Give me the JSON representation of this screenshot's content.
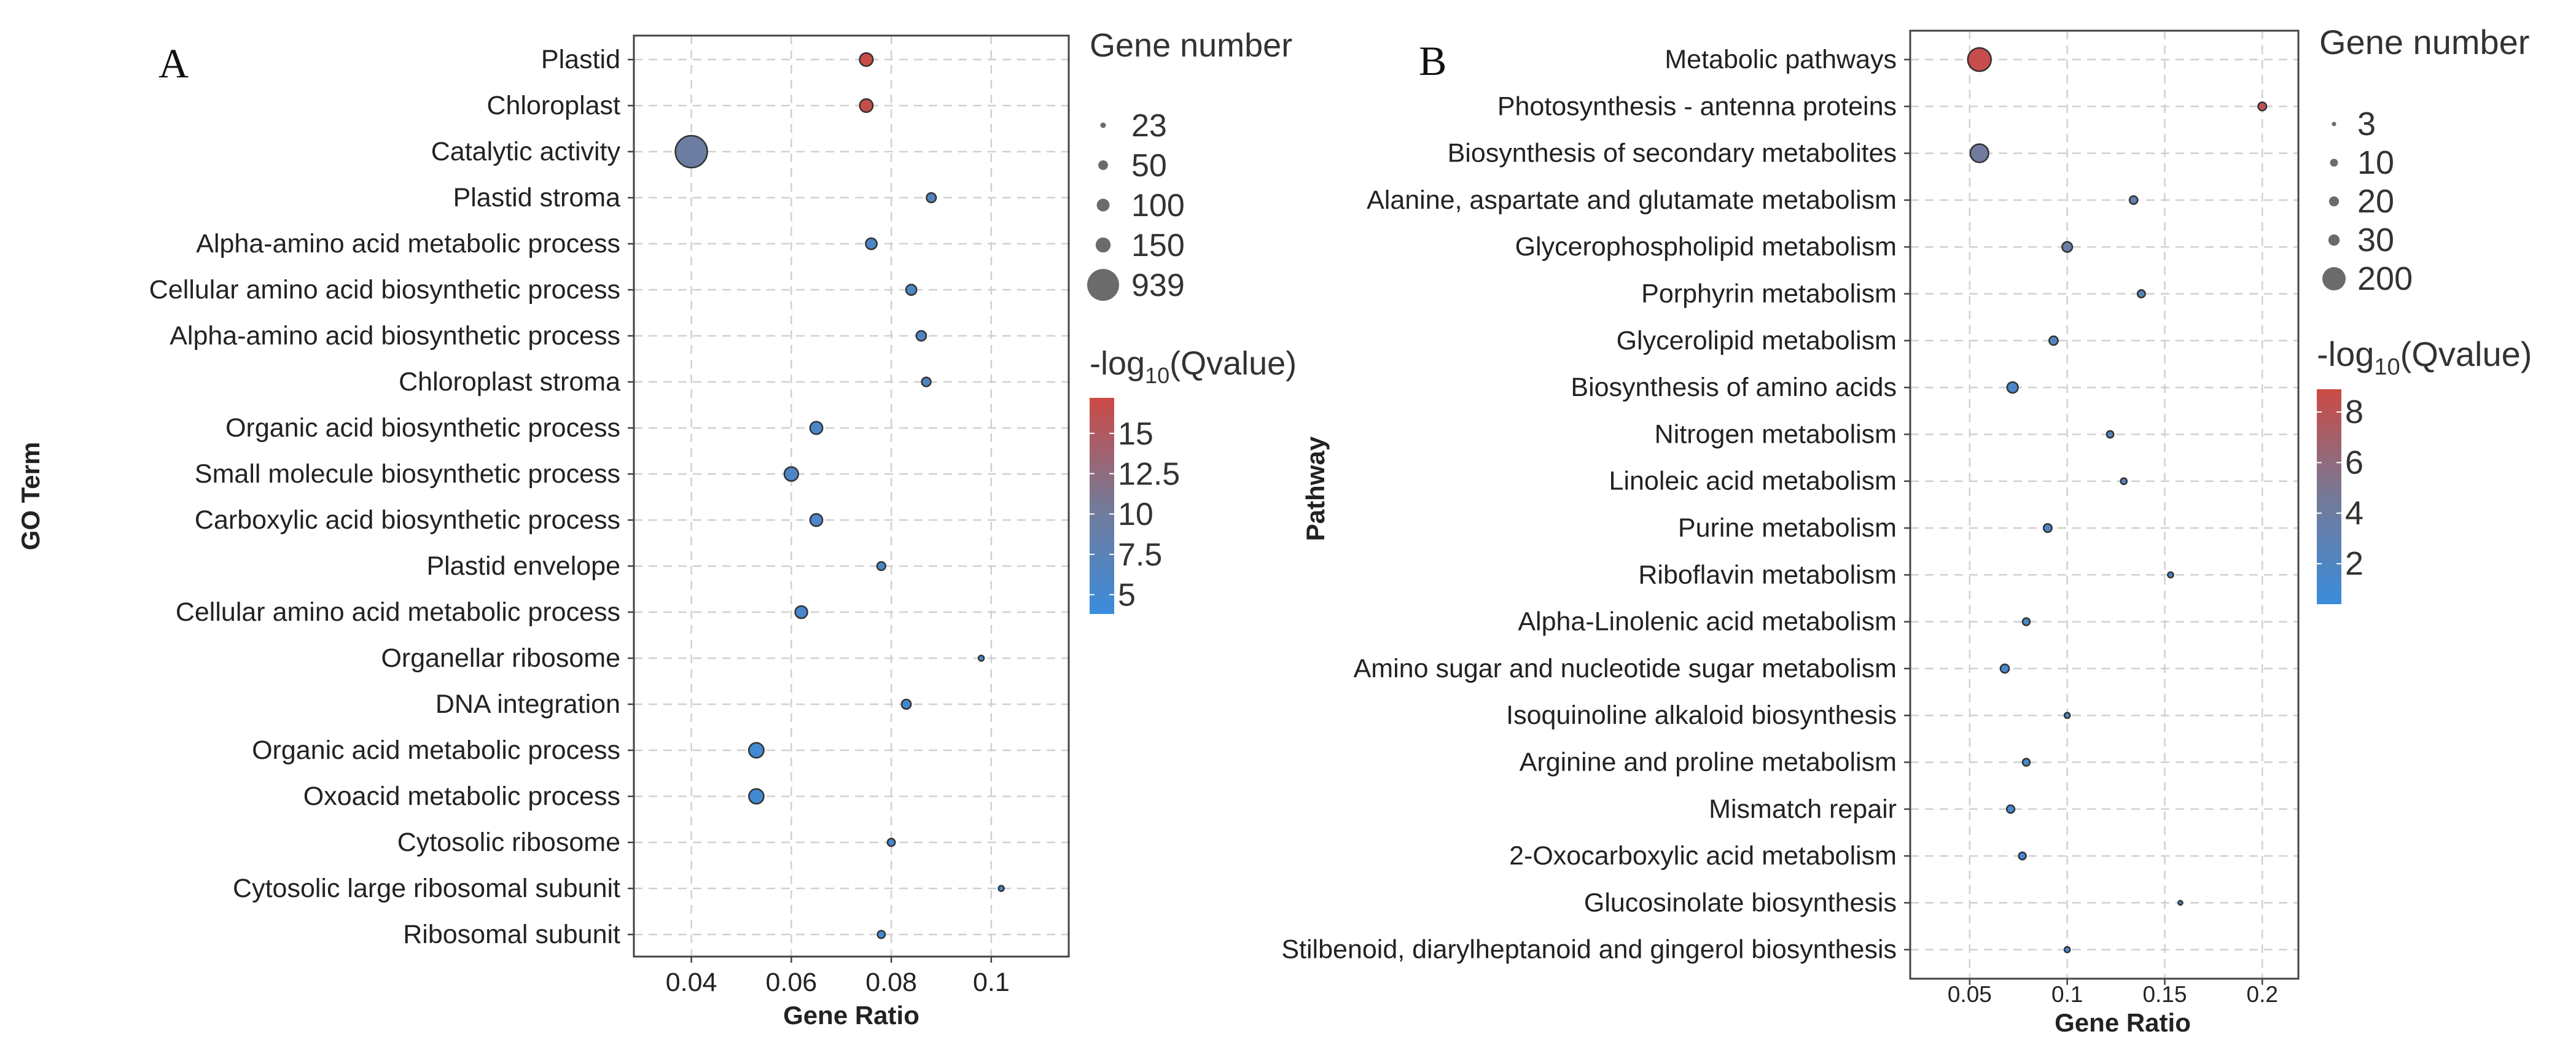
{
  "chart_data": [
    {
      "panel": "A",
      "type": "scatter",
      "xlabel": "Gene Ratio",
      "ylabel": "GO Term",
      "xlim": [
        0.0285,
        0.1155
      ],
      "xticks": [
        0.04,
        0.06,
        0.08,
        0.1
      ],
      "xtick_labels": [
        "0.04",
        "0.06",
        "0.08",
        "0.1"
      ],
      "size_legend": {
        "title": "Gene number",
        "values": [
          23,
          50,
          100,
          150,
          939
        ],
        "labels": [
          "23",
          "50",
          "100",
          "150",
          "939"
        ]
      },
      "color_legend": {
        "title_prefix": "-log",
        "title_sub": "10",
        "title_suffix": "(Qvalue)",
        "ticks": [
          15,
          12.5,
          10,
          7.5,
          5
        ],
        "tick_labels": [
          "15",
          "12.5",
          "10",
          "7.5",
          "5"
        ],
        "range": [
          3.8,
          17.2
        ]
      },
      "points": [
        {
          "term": "Plastid",
          "ratio": 0.075,
          "genes": 110,
          "qlog": 17.0
        },
        {
          "term": "Chloroplast",
          "ratio": 0.075,
          "genes": 108,
          "qlog": 16.8
        },
        {
          "term": "Catalytic activity",
          "ratio": 0.04,
          "genes": 939,
          "qlog": 9.6
        },
        {
          "term": "Plastid stroma",
          "ratio": 0.088,
          "genes": 48,
          "qlog": 6.6
        },
        {
          "term": "Alpha-amino acid metabolic process",
          "ratio": 0.076,
          "genes": 70,
          "qlog": 6.0
        },
        {
          "term": "Cellular amino acid biosynthetic process",
          "ratio": 0.084,
          "genes": 60,
          "qlog": 6.2
        },
        {
          "term": "Alpha-amino acid biosynthetic process",
          "ratio": 0.086,
          "genes": 52,
          "qlog": 6.0
        },
        {
          "term": "Chloroplast stroma",
          "ratio": 0.087,
          "genes": 42,
          "qlog": 6.4
        },
        {
          "term": "Organic acid biosynthetic process",
          "ratio": 0.065,
          "genes": 95,
          "qlog": 5.8
        },
        {
          "term": "Small molecule biosynthetic process",
          "ratio": 0.06,
          "genes": 125,
          "qlog": 5.9
        },
        {
          "term": "Carboxylic acid biosynthetic process",
          "ratio": 0.065,
          "genes": 92,
          "qlog": 5.8
        },
        {
          "term": "Plastid envelope",
          "ratio": 0.078,
          "genes": 36,
          "qlog": 5.6
        },
        {
          "term": "Cellular amino acid metabolic process",
          "ratio": 0.062,
          "genes": 90,
          "qlog": 5.3
        },
        {
          "term": "Organellar ribosome",
          "ratio": 0.098,
          "genes": 23,
          "qlog": 5.0
        },
        {
          "term": "DNA integration",
          "ratio": 0.083,
          "genes": 46,
          "qlog": 5.2
        },
        {
          "term": "Organic acid metabolic process",
          "ratio": 0.053,
          "genes": 150,
          "qlog": 4.7
        },
        {
          "term": "Oxoacid metabolic process",
          "ratio": 0.053,
          "genes": 148,
          "qlog": 4.7
        },
        {
          "term": "Cytosolic ribosome",
          "ratio": 0.08,
          "genes": 30,
          "qlog": 4.6
        },
        {
          "term": "Cytosolic large ribosomal subunit",
          "ratio": 0.102,
          "genes": 23,
          "qlog": 4.5
        },
        {
          "term": "Ribosomal subunit",
          "ratio": 0.078,
          "genes": 30,
          "qlog": 4.4
        }
      ]
    },
    {
      "panel": "B",
      "type": "scatter",
      "xlabel": "Gene Ratio",
      "ylabel": "Pathway",
      "xlim": [
        0.0195,
        0.2185
      ],
      "xticks": [
        0.05,
        0.1,
        0.15,
        0.2
      ],
      "xtick_labels": [
        "0.05",
        "0.1",
        "0.15",
        "0.2"
      ],
      "size_legend": {
        "title": "Gene number",
        "values": [
          3,
          10,
          20,
          30,
          200
        ],
        "labels": [
          "3",
          "10",
          "20",
          "30",
          "200"
        ]
      },
      "color_legend": {
        "title_prefix": "-log",
        "title_sub": "10",
        "title_suffix": "(Qvalue)",
        "ticks": [
          8,
          6,
          4,
          2
        ],
        "tick_labels": [
          "8",
          "6",
          "4",
          "2"
        ],
        "range": [
          0.4,
          8.9
        ]
      },
      "points": [
        {
          "term": "Metabolic pathways",
          "ratio": 0.055,
          "genes": 200,
          "qlog": 8.6
        },
        {
          "term": "Photosynthesis - antenna proteins",
          "ratio": 0.2,
          "genes": 12,
          "qlog": 8.1
        },
        {
          "term": "Biosynthesis of secondary metabolites",
          "ratio": 0.055,
          "genes": 110,
          "qlog": 4.3
        },
        {
          "term": "Alanine, aspartate and glutamate metabolism",
          "ratio": 0.134,
          "genes": 11,
          "qlog": 3.4
        },
        {
          "term": "Glycerophospholipid metabolism",
          "ratio": 0.1,
          "genes": 22,
          "qlog": 3.7
        },
        {
          "term": "Porphyrin metabolism",
          "ratio": 0.138,
          "genes": 9,
          "qlog": 2.6
        },
        {
          "term": "Glycerolipid metabolism",
          "ratio": 0.093,
          "genes": 14,
          "qlog": 2.2
        },
        {
          "term": "Biosynthesis of amino acids",
          "ratio": 0.072,
          "genes": 27,
          "qlog": 1.7
        },
        {
          "term": "Nitrogen metabolism",
          "ratio": 0.122,
          "genes": 7,
          "qlog": 2.4
        },
        {
          "term": "Linoleic acid metabolism",
          "ratio": 0.129,
          "genes": 5,
          "qlog": 2.2
        },
        {
          "term": "Purine metabolism",
          "ratio": 0.09,
          "genes": 12,
          "qlog": 1.8
        },
        {
          "term": "Riboflavin metabolism",
          "ratio": 0.153,
          "genes": 4,
          "qlog": 1.8
        },
        {
          "term": "Alpha-Linolenic acid metabolism",
          "ratio": 0.079,
          "genes": 8,
          "qlog": 1.5
        },
        {
          "term": "Amino sugar and nucleotide sugar metabolism",
          "ratio": 0.068,
          "genes": 13,
          "qlog": 1.3
        },
        {
          "term": "Isoquinoline alkaloid biosynthesis",
          "ratio": 0.1,
          "genes": 4,
          "qlog": 1.4
        },
        {
          "term": "Arginine and proline metabolism",
          "ratio": 0.079,
          "genes": 8,
          "qlog": 1.3
        },
        {
          "term": "Mismatch repair",
          "ratio": 0.071,
          "genes": 10,
          "qlog": 1.1
        },
        {
          "term": "2-Oxocarboxylic  acid metabolism",
          "ratio": 0.077,
          "genes": 8,
          "qlog": 1.0
        },
        {
          "term": "Glucosinolate biosynthesis",
          "ratio": 0.158,
          "genes": 3,
          "qlog": 0.9
        },
        {
          "term": "Stilbenoid, diarylheptanoid and gingerol biosynthesis",
          "ratio": 0.1,
          "genes": 4,
          "qlog": 0.8
        }
      ]
    }
  ],
  "colors": {
    "high": "#cc4a44",
    "mid": "#757a98",
    "low": "#3a8cdc",
    "grid": "#d0d0d0",
    "frame": "#444444"
  }
}
